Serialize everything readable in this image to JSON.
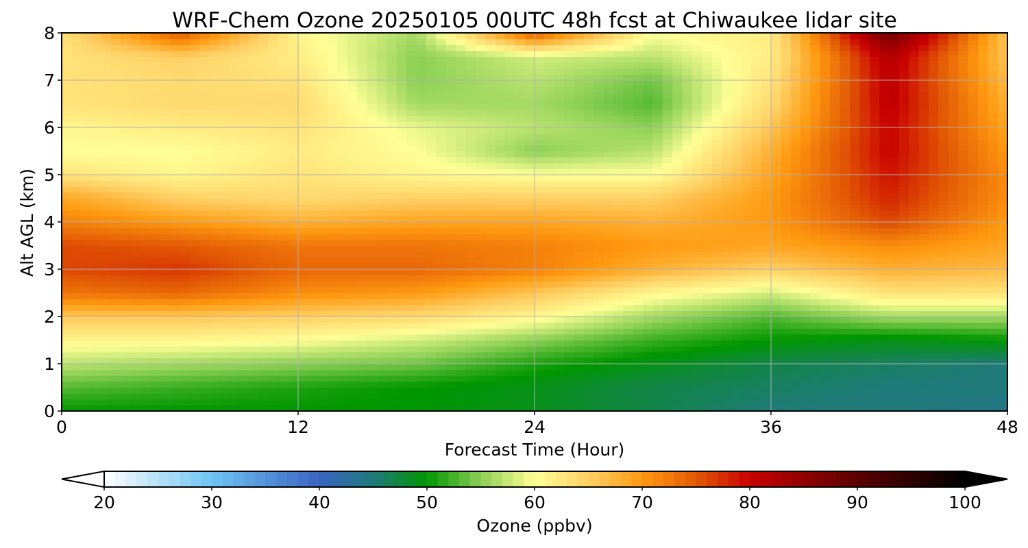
{
  "chart_data": {
    "type": "heatmap",
    "subtype": "filled-contour time-height cross section",
    "title": "WRF-Chem Ozone  20250105 00UTC 48h fcst at Chiwaukee lidar site",
    "xlabel": "Forecast Time (Hour)",
    "ylabel": "Alt AGL (km)",
    "xlim": [
      0,
      48
    ],
    "ylim": [
      0,
      8
    ],
    "xticks": [
      "0",
      "12",
      "24",
      "36",
      "48"
    ],
    "yticks": [
      "0",
      "1",
      "2",
      "3",
      "4",
      "5",
      "6",
      "7",
      "8"
    ],
    "grid": true,
    "colorbar": {
      "orientation": "horizontal",
      "position": "bottom",
      "label": "Ozone  (ppbv)",
      "range": [
        20,
        100
      ],
      "ticks": [
        "20",
        "30",
        "40",
        "50",
        "60",
        "70",
        "80",
        "90",
        "100"
      ],
      "extend": "both",
      "colors": [
        {
          "v": 20,
          "c": "#ffffff"
        },
        {
          "v": 30,
          "c": "#6ec4f2"
        },
        {
          "v": 40,
          "c": "#3a64c2"
        },
        {
          "v": 45,
          "c": "#1f7a7a"
        },
        {
          "v": 50,
          "c": "#009600"
        },
        {
          "v": 55,
          "c": "#8ccf55"
        },
        {
          "v": 60,
          "c": "#ffff96"
        },
        {
          "v": 65,
          "c": "#ffd065"
        },
        {
          "v": 70,
          "c": "#ff9a10"
        },
        {
          "v": 75,
          "c": "#e35a05"
        },
        {
          "v": 80,
          "c": "#c80000"
        },
        {
          "v": 90,
          "c": "#5a0000"
        },
        {
          "v": 100,
          "c": "#000000"
        }
      ]
    },
    "x": [
      0,
      6,
      12,
      18,
      24,
      30,
      36,
      42,
      48
    ],
    "y": [
      0,
      0.5,
      1,
      1.5,
      2,
      2.5,
      3,
      3.5,
      4,
      4.5,
      5,
      5.5,
      6,
      6.5,
      7,
      7.5,
      8
    ],
    "values": [
      [
        50,
        50,
        50,
        50,
        49,
        47,
        45,
        45,
        44
      ],
      [
        53,
        52,
        51,
        50,
        49,
        47,
        46,
        45,
        45
      ],
      [
        57,
        56,
        55,
        54,
        51,
        49,
        47,
        46,
        45
      ],
      [
        61,
        61,
        60,
        58,
        55,
        52,
        50,
        49,
        50
      ],
      [
        66,
        66,
        65,
        64,
        61,
        56,
        53,
        56,
        56
      ],
      [
        73,
        74,
        71,
        70,
        66,
        61,
        58,
        63,
        63
      ],
      [
        76,
        77,
        74,
        74,
        72,
        68,
        65,
        68,
        67
      ],
      [
        76,
        75,
        73,
        73,
        72,
        70,
        69,
        71,
        69
      ],
      [
        72,
        70,
        68,
        69,
        69,
        68,
        70,
        76,
        70
      ],
      [
        69,
        65,
        64,
        65,
        65,
        65,
        70,
        78,
        71
      ],
      [
        63,
        61,
        63,
        61,
        60,
        60,
        69,
        79,
        71
      ],
      [
        60,
        60,
        62,
        60,
        55,
        57,
        68,
        80,
        70
      ],
      [
        61,
        62,
        63,
        59,
        57,
        55,
        66,
        80,
        69
      ],
      [
        63,
        64,
        64,
        56,
        56,
        53,
        64,
        81,
        68
      ],
      [
        63,
        64,
        63,
        55,
        57,
        54,
        63,
        81,
        67
      ],
      [
        63,
        65,
        62,
        55,
        58,
        57,
        62,
        82,
        66
      ],
      [
        63,
        75,
        61,
        56,
        75,
        60,
        62,
        88,
        66
      ]
    ]
  }
}
